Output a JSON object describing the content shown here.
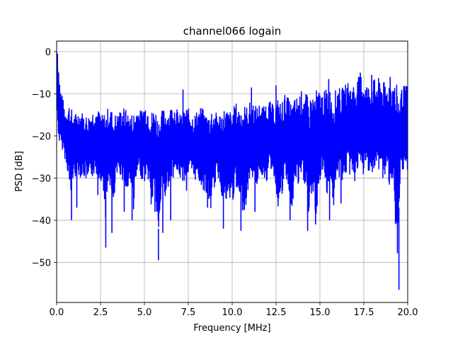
{
  "chart_data": {
    "type": "line",
    "title": "channel066 logain",
    "xlabel": "Frequency [MHz]",
    "ylabel": "PSD [dB]",
    "xlim": [
      0,
      20
    ],
    "ylim": [
      -59.5,
      2.5
    ],
    "grid": true,
    "xticks": [
      0,
      2.5,
      5,
      7.5,
      10,
      12.5,
      15,
      17.5,
      20
    ],
    "xtick_labels": [
      "0.0",
      "2.5",
      "5.0",
      "7.5",
      "10.0",
      "12.5",
      "15.0",
      "17.5",
      "20.0"
    ],
    "yticks": [
      0,
      -10,
      -20,
      -30,
      -40,
      -50
    ],
    "ytick_labels": [
      "0",
      "−10",
      "−20",
      "−30",
      "−40",
      "−50"
    ],
    "series": [
      {
        "color": "#0000ff",
        "x": [
          0.0,
          0.05,
          0.1,
          0.15,
          0.2,
          0.3,
          0.4,
          0.5,
          0.6,
          0.7,
          0.8,
          0.9,
          1.0,
          1.2,
          1.4,
          1.6,
          1.8,
          2.0,
          2.2,
          2.4,
          2.6,
          2.8,
          3.0,
          3.2,
          3.4,
          3.6,
          3.8,
          4.0,
          4.2,
          4.4,
          4.6,
          4.8,
          5.0,
          5.2,
          5.4,
          5.6,
          5.8,
          6.0,
          6.2,
          6.4,
          6.6,
          6.8,
          7.0,
          7.2,
          7.4,
          7.6,
          7.8,
          8.0,
          8.2,
          8.4,
          8.6,
          8.8,
          9.0,
          9.2,
          9.4,
          9.6,
          9.8,
          10.0,
          10.2,
          10.4,
          10.6,
          10.8,
          11.0,
          11.2,
          11.4,
          11.6,
          11.8,
          12.0,
          12.2,
          12.4,
          12.6,
          12.8,
          13.0,
          13.2,
          13.4,
          13.6,
          13.8,
          14.0,
          14.2,
          14.4,
          14.6,
          14.8,
          15.0,
          15.2,
          15.4,
          15.6,
          15.8,
          16.0,
          16.2,
          16.4,
          16.6,
          16.8,
          17.0,
          17.2,
          17.4,
          17.6,
          17.8,
          18.0,
          18.2,
          18.4,
          18.6,
          18.8,
          19.0,
          19.2,
          19.4,
          19.6,
          19.8,
          20.0
        ],
        "upper": [
          0,
          -1,
          -2,
          -5,
          -8,
          -10,
          -12,
          -14,
          -13,
          -12,
          -13,
          -14,
          -15,
          -14,
          -14,
          -15,
          -15,
          -14,
          -13,
          -14,
          -15,
          -14,
          -13,
          -14,
          -15,
          -14,
          -13,
          -14,
          -15,
          -14,
          -13,
          -14,
          -12,
          -13,
          -14,
          -13,
          -15,
          -14,
          -13,
          -14,
          -12,
          -13,
          -15,
          -14,
          -13,
          -14,
          -15,
          -14,
          -13,
          -14,
          -15,
          -13,
          -14,
          -15,
          -14,
          -13,
          -14,
          -14,
          -12,
          -13,
          -12,
          -13,
          -12,
          -12,
          -13,
          -12,
          -13,
          -11,
          -12,
          -13,
          -11,
          -12,
          -10,
          -11,
          -12,
          -11,
          -10,
          -9,
          -10,
          -11,
          -10,
          -9,
          -9,
          -10,
          -8,
          -9,
          -10,
          -8,
          -9,
          -8,
          -7,
          -8,
          -7,
          -6,
          -5,
          -7,
          -8,
          -6,
          -7,
          -6,
          -7,
          -8,
          -6,
          -7,
          -8,
          -9,
          -8,
          -8
        ],
        "lower": [
          -15,
          -18,
          -20,
          -22,
          -23,
          -23,
          -24,
          -26,
          -28,
          -30,
          -38,
          -31,
          -30,
          -29,
          -30,
          -30,
          -32,
          -30,
          -29,
          -30,
          -31,
          -40,
          -30,
          -40,
          -30,
          -29,
          -31,
          -35,
          -30,
          -38,
          -29,
          -30,
          -31,
          -30,
          -38,
          -32,
          -48,
          -30,
          -36,
          -31,
          -30,
          -29,
          -30,
          -31,
          -30,
          -29,
          -31,
          -30,
          -32,
          -33,
          -35,
          -38,
          -32,
          -30,
          -34,
          -37,
          -36,
          -36,
          -33,
          -36,
          -38,
          -37,
          -30,
          -30,
          -32,
          -29,
          -30,
          -31,
          -28,
          -30,
          -37,
          -36,
          -31,
          -32,
          -40,
          -30,
          -33,
          -31,
          -32,
          -42,
          -33,
          -41,
          -31,
          -29,
          -34,
          -30,
          -38,
          -30,
          -31,
          -30,
          -29,
          -30,
          -31,
          -28,
          -30,
          -29,
          -28,
          -30,
          -29,
          -28,
          -31,
          -30,
          -32,
          -30,
          -56,
          -30,
          -29,
          -28
        ]
      }
    ],
    "dips": [
      {
        "x": 0.85,
        "y": -40
      },
      {
        "x": 1.15,
        "y": -37
      },
      {
        "x": 2.35,
        "y": -34
      },
      {
        "x": 2.8,
        "y": -46.5
      },
      {
        "x": 3.15,
        "y": -43
      },
      {
        "x": 3.85,
        "y": -38
      },
      {
        "x": 4.3,
        "y": -40
      },
      {
        "x": 5.6,
        "y": -38
      },
      {
        "x": 5.8,
        "y": -49.5
      },
      {
        "x": 6.05,
        "y": -43
      },
      {
        "x": 6.5,
        "y": -40
      },
      {
        "x": 7.4,
        "y": -33
      },
      {
        "x": 8.6,
        "y": -37
      },
      {
        "x": 9.5,
        "y": -42
      },
      {
        "x": 10.5,
        "y": -42.5
      },
      {
        "x": 11.3,
        "y": -38
      },
      {
        "x": 13.3,
        "y": -40
      },
      {
        "x": 14.3,
        "y": -42.5
      },
      {
        "x": 14.75,
        "y": -41
      },
      {
        "x": 15.55,
        "y": -40
      },
      {
        "x": 16.2,
        "y": -36
      },
      {
        "x": 19.5,
        "y": -56.5
      }
    ],
    "peaks": [
      {
        "x": 0.0,
        "y": 0
      },
      {
        "x": 0.05,
        "y": -0.5
      },
      {
        "x": 7.2,
        "y": -9
      },
      {
        "x": 11.1,
        "y": -8.5
      },
      {
        "x": 12.5,
        "y": -8
      },
      {
        "x": 15.5,
        "y": -6.5
      },
      {
        "x": 17.3,
        "y": -5
      },
      {
        "x": 17.95,
        "y": -5.5
      },
      {
        "x": 19.0,
        "y": -6
      }
    ]
  }
}
